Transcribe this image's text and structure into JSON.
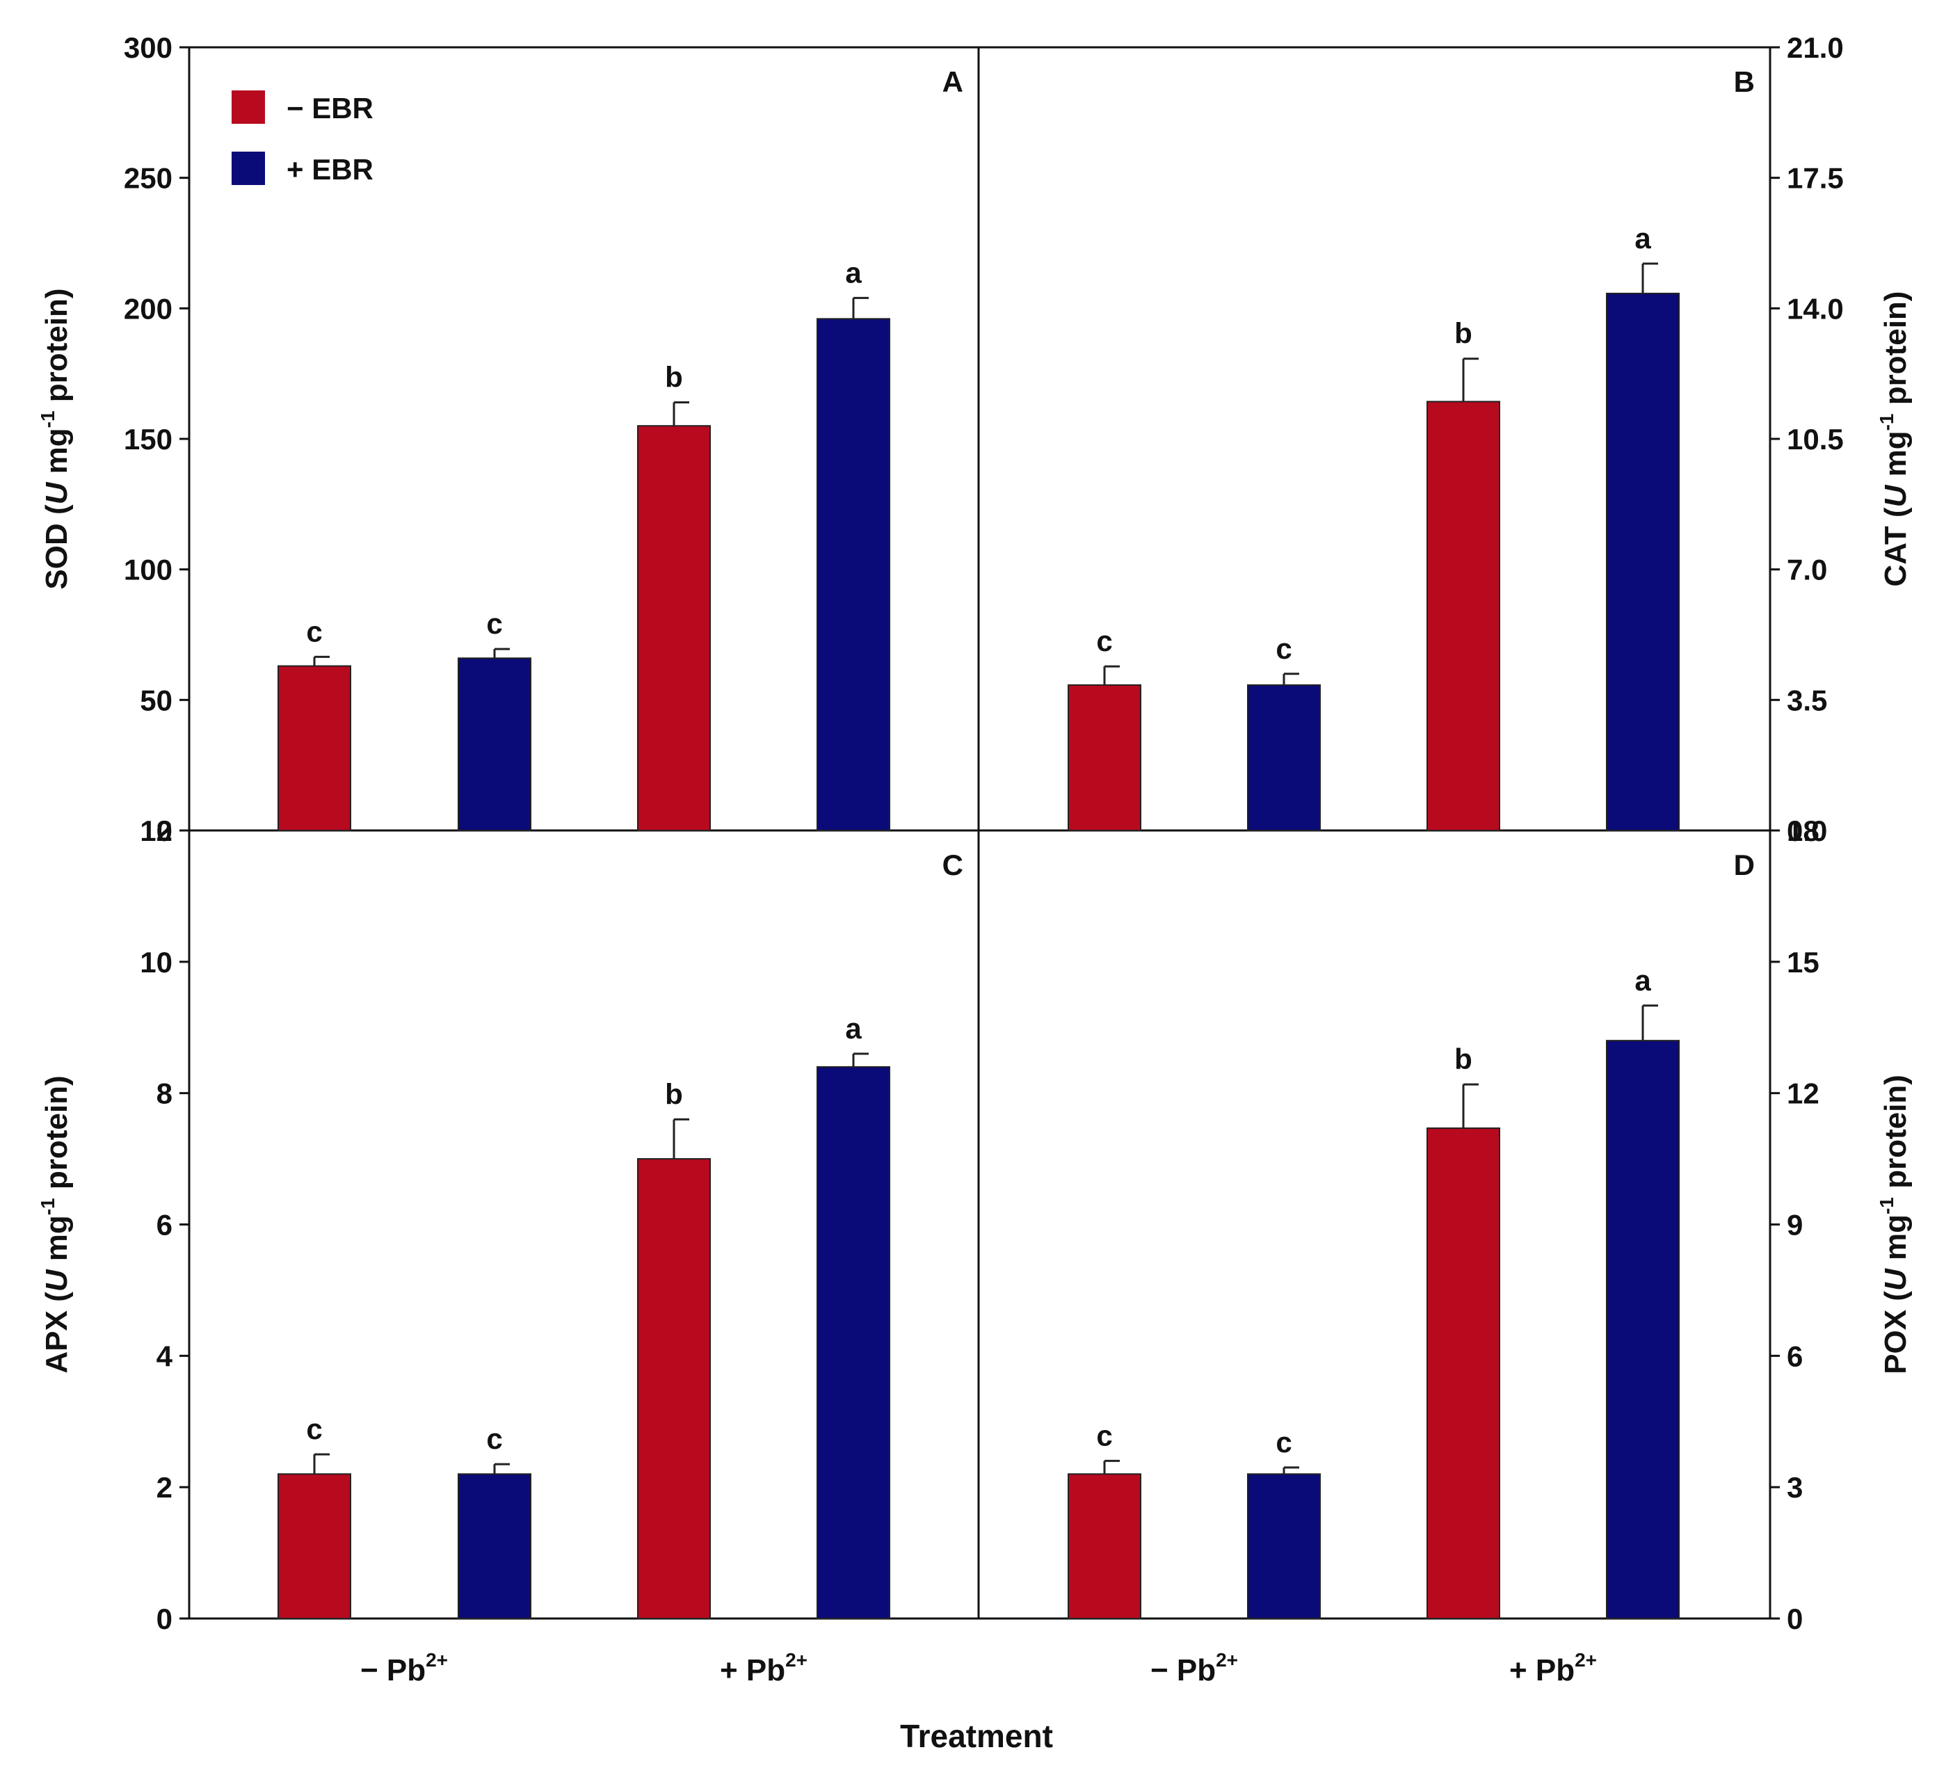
{
  "chart_data": {
    "type": "bar",
    "xlabel": "Treatment",
    "categories": [
      "− Pb2+",
      "+ Pb2+"
    ],
    "category_parts": [
      {
        "base": "− Pb",
        "sup": "2+"
      },
      {
        "base": "+ Pb",
        "sup": "2+"
      }
    ],
    "legend": {
      "placement": "top-left",
      "items": [
        {
          "label": "− EBR",
          "color": "#B80A1F"
        },
        {
          "label": "+ EBR",
          "color": "#0A0A78"
        }
      ]
    },
    "panels": [
      {
        "id": "A",
        "ylabel": {
          "pre": "SOD (",
          "unit": "U",
          "mid": " mg",
          "sup": "-1",
          "post": " protein)"
        },
        "ylim": [
          0,
          300
        ],
        "yticks": [
          "0",
          "50",
          "100",
          "150",
          "200",
          "250",
          "300"
        ],
        "axis_side": "left",
        "series": [
          {
            "name": "− EBR",
            "values": [
              63,
              155
            ],
            "errors": [
              3.5,
              9
            ],
            "letters": [
              "c",
              "b"
            ]
          },
          {
            "name": "+ EBR",
            "values": [
              66,
              196
            ],
            "errors": [
              3.5,
              8
            ],
            "letters": [
              "c",
              "a"
            ]
          }
        ]
      },
      {
        "id": "B",
        "ylabel": {
          "pre": "CAT (",
          "unit": "U",
          "mid": " mg",
          "sup": "-1",
          "post": " protein)"
        },
        "ylim": [
          0,
          21
        ],
        "yticks": [
          "0.0",
          "3.5",
          "7.0",
          "10.5",
          "14.0",
          "17.5",
          "21.0"
        ],
        "axis_side": "right",
        "series": [
          {
            "name": "− EBR",
            "values": [
              3.9,
              11.5
            ],
            "errors": [
              0.5,
              1.15
            ],
            "letters": [
              "c",
              "b"
            ]
          },
          {
            "name": "+ EBR",
            "values": [
              3.9,
              14.4
            ],
            "errors": [
              0.3,
              0.8
            ],
            "letters": [
              "c",
              "a"
            ]
          }
        ]
      },
      {
        "id": "C",
        "ylabel": {
          "pre": "APX (",
          "unit": "U",
          "mid": " mg",
          "sup": "-1",
          "post": " protein)"
        },
        "ylim": [
          0,
          12
        ],
        "yticks": [
          "0",
          "2",
          "4",
          "6",
          "8",
          "10",
          "12"
        ],
        "axis_side": "left",
        "series": [
          {
            "name": "− EBR",
            "values": [
              2.2,
              7.0
            ],
            "errors": [
              0.3,
              0.6
            ],
            "letters": [
              "c",
              "b"
            ]
          },
          {
            "name": "+ EBR",
            "values": [
              2.2,
              8.4
            ],
            "errors": [
              0.15,
              0.2
            ],
            "letters": [
              "c",
              "a"
            ]
          }
        ]
      },
      {
        "id": "D",
        "ylabel": {
          "pre": "POX (",
          "unit": "U",
          "mid": " mg",
          "sup": "-1",
          "post": " protein)"
        },
        "ylim": [
          0,
          18
        ],
        "yticks": [
          "0",
          "3",
          "6",
          "9",
          "12",
          "15",
          "18"
        ],
        "axis_side": "right",
        "series": [
          {
            "name": "− EBR",
            "values": [
              3.3,
              11.2
            ],
            "errors": [
              0.3,
              1.0
            ],
            "letters": [
              "c",
              "b"
            ]
          },
          {
            "name": "+ EBR",
            "values": [
              3.3,
              13.2
            ],
            "errors": [
              0.15,
              0.8
            ],
            "letters": [
              "c",
              "a"
            ]
          }
        ]
      }
    ]
  }
}
